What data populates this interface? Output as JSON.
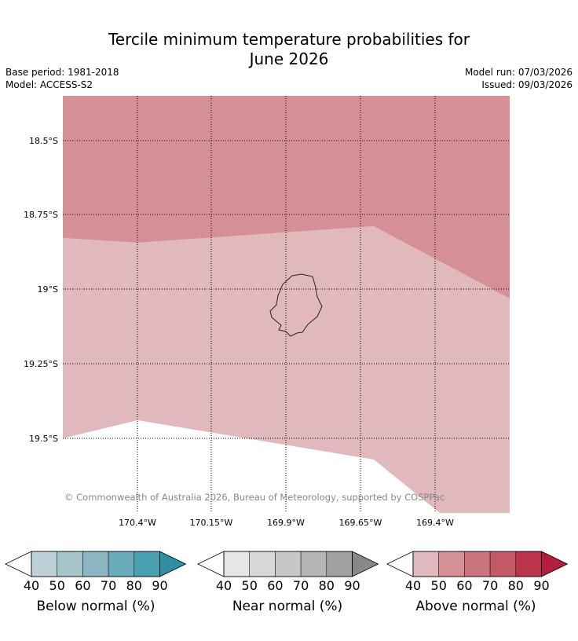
{
  "title_line1": "Tercile minimum temperature probabilities for",
  "title_line2": "June 2026",
  "base_period": "Base period: 1981-2018",
  "model": "Model: ACCESS-S2",
  "model_run": "Model run: 07/03/2026",
  "issued": "Issued: 09/03/2026",
  "copyright": "© Commonwealth of Australia 2026, Bureau of Meteorology, supported by COSPPac",
  "lat_labels": [
    "18.5°S",
    "18.75°S",
    "19°S",
    "19.25°S",
    "19.5°S"
  ],
  "lon_labels": [
    "170.4°W",
    "170.15°W",
    "169.9°W",
    "169.65°W",
    "169.4°W"
  ],
  "colorbars": [
    {
      "label": "Below normal (%)",
      "ticks": [
        "40",
        "50",
        "60",
        "70",
        "80",
        "90"
      ],
      "colors": [
        "#bdd2d8",
        "#a6c5cb",
        "#89b6c1",
        "#6aacbb",
        "#4a9fb1",
        "#2f8ea2"
      ]
    },
    {
      "label": "Near normal (%)",
      "ticks": [
        "40",
        "50",
        "60",
        "70",
        "80",
        "90"
      ],
      "colors": [
        "#e6e6e6",
        "#d7d7d7",
        "#c7c7c7",
        "#b4b4b4",
        "#a1a1a1",
        "#888888"
      ]
    },
    {
      "label": "Above normal (%)",
      "ticks": [
        "40",
        "50",
        "60",
        "70",
        "80",
        "90"
      ],
      "colors": [
        "#e1b8bc",
        "#d59097",
        "#cb747b",
        "#c35a65",
        "#bb354a",
        "#b0203c"
      ]
    }
  ],
  "map_colors": {
    "above_60": "#d59097",
    "above_50": "#e1b8bc",
    "island_outline": "#222222"
  }
}
